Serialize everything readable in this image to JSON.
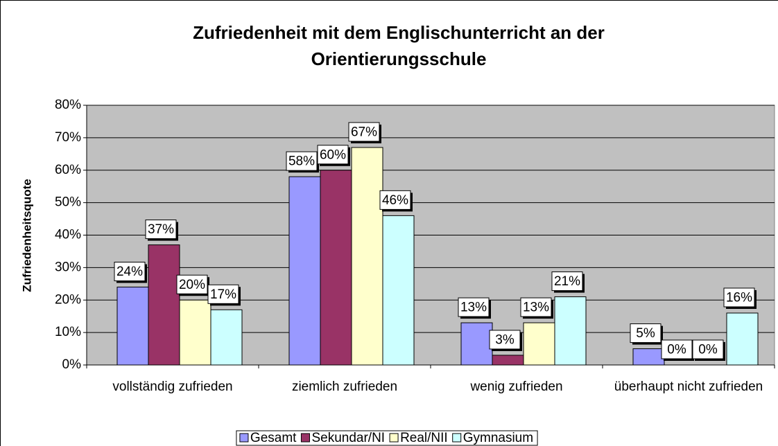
{
  "chart_data": {
    "type": "bar",
    "title": "Zufriedenheit mit dem Englischunterricht an der Orientierungsschule",
    "y_label": "Zufriedenheitsquote",
    "categories": [
      "vollständig zufrieden",
      "ziemlich zufrieden",
      "wenig zufrieden",
      "überhaupt nicht zufrieden"
    ],
    "series": [
      {
        "name": "Gesamt",
        "color": "#9999ff",
        "values": [
          24,
          58,
          13,
          5
        ],
        "value_labels": [
          "24%",
          "58%",
          "13%",
          "5%"
        ]
      },
      {
        "name": "Sekundar/NI",
        "color": "#993366",
        "values": [
          37,
          60,
          3,
          0
        ],
        "value_labels": [
          "37%",
          "60%",
          "3%",
          "0%"
        ]
      },
      {
        "name": "Real/NII",
        "color": "#ffffcc",
        "values": [
          20,
          67,
          13,
          0
        ],
        "value_labels": [
          "20%",
          "67%",
          "13%",
          "0%"
        ]
      },
      {
        "name": "Gymnasium",
        "color": "#ccffff",
        "values": [
          17,
          46,
          21,
          16
        ],
        "value_labels": [
          "17%",
          "46%",
          "21%",
          "16%"
        ]
      }
    ],
    "ylim": [
      0,
      80
    ],
    "yticks": [
      {
        "value": 0,
        "label": "0%"
      },
      {
        "value": 10,
        "label": "10%"
      },
      {
        "value": 20,
        "label": "20%"
      },
      {
        "value": 30,
        "label": "30%"
      },
      {
        "value": 40,
        "label": "40%"
      },
      {
        "value": 50,
        "label": "50%"
      },
      {
        "value": 60,
        "label": "60%"
      },
      {
        "value": 70,
        "label": "70%"
      },
      {
        "value": 80,
        "label": "80%"
      }
    ],
    "grid": true,
    "plot_background": "#c0c0c0",
    "legend": "bottom"
  }
}
